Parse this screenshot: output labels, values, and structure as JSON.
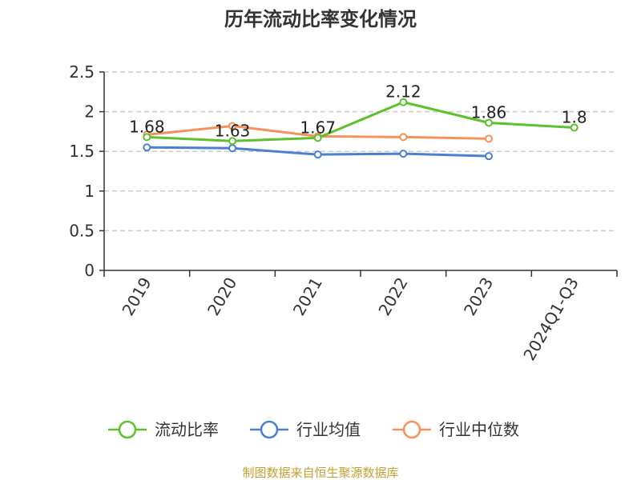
{
  "chart_data": {
    "type": "line",
    "title": "历年流动比率变化情况",
    "categories": [
      "2019",
      "2020",
      "2021",
      "2022",
      "2023",
      "2024Q1-Q3"
    ],
    "series": [
      {
        "name": "流动比率",
        "color": "#5cc12d",
        "values": [
          1.68,
          1.63,
          1.67,
          2.12,
          1.86,
          1.8
        ],
        "labels": [
          "1.68",
          "1.63",
          "1.67",
          "2.12",
          "1.86",
          "1.8"
        ]
      },
      {
        "name": "行业均值",
        "color": "#4a7fd4",
        "values": [
          1.55,
          1.54,
          1.46,
          1.47,
          1.44,
          null
        ]
      },
      {
        "name": "行业中位数",
        "color": "#f5925c",
        "values": [
          1.71,
          1.82,
          1.69,
          1.68,
          1.66,
          null
        ]
      }
    ],
    "ylim": [
      0,
      2.5
    ],
    "yticks": [
      "0",
      "0.5",
      "1",
      "1.5",
      "2",
      "2.5"
    ],
    "grid": true,
    "legend_position": "bottom"
  },
  "source": "制图数据来自恒生聚源数据库"
}
